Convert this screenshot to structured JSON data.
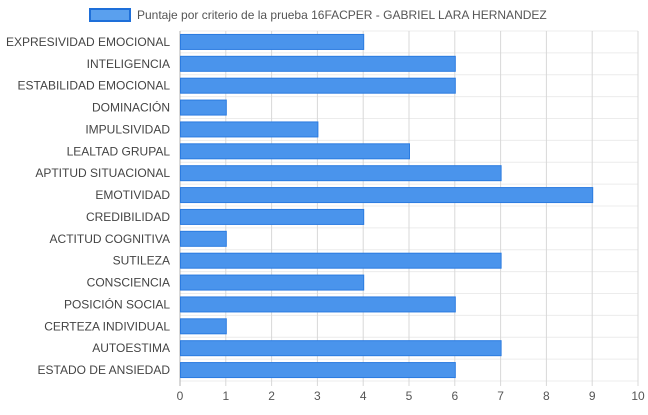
{
  "chart_data": {
    "type": "bar",
    "orientation": "horizontal",
    "categories": [
      "EXPRESIVIDAD EMOCIONAL",
      "INTELIGENCIA",
      "ESTABILIDAD EMOCIONAL",
      "DOMINACIÓN",
      "IMPULSIVIDAD",
      "LEALTAD GRUPAL",
      "APTITUD SITUACIONAL",
      "EMOTIVIDAD",
      "CREDIBILIDAD",
      "ACTITUD COGNITIVA",
      "SUTILEZA",
      "CONSCIENCIA",
      "POSICIÓN SOCIAL",
      "CERTEZA INDIVIDUAL",
      "AUTOESTIMA",
      "ESTADO DE ANSIEDAD"
    ],
    "series": [
      {
        "name": "Puntaje por criterio de la prueba 16FACPER - GABRIEL LARA HERNANDEZ",
        "values": [
          4,
          6,
          6,
          1,
          3,
          5,
          7,
          9,
          4,
          1,
          7,
          4,
          6,
          1,
          7,
          6
        ],
        "color": "#4a94ec",
        "border_color": "#2b7be0"
      }
    ],
    "xlim": [
      0,
      10
    ],
    "xticks": [
      "0",
      "1",
      "2",
      "3",
      "4",
      "5",
      "6",
      "7",
      "8",
      "9",
      "10"
    ],
    "grid": true,
    "legend_position": "top"
  }
}
